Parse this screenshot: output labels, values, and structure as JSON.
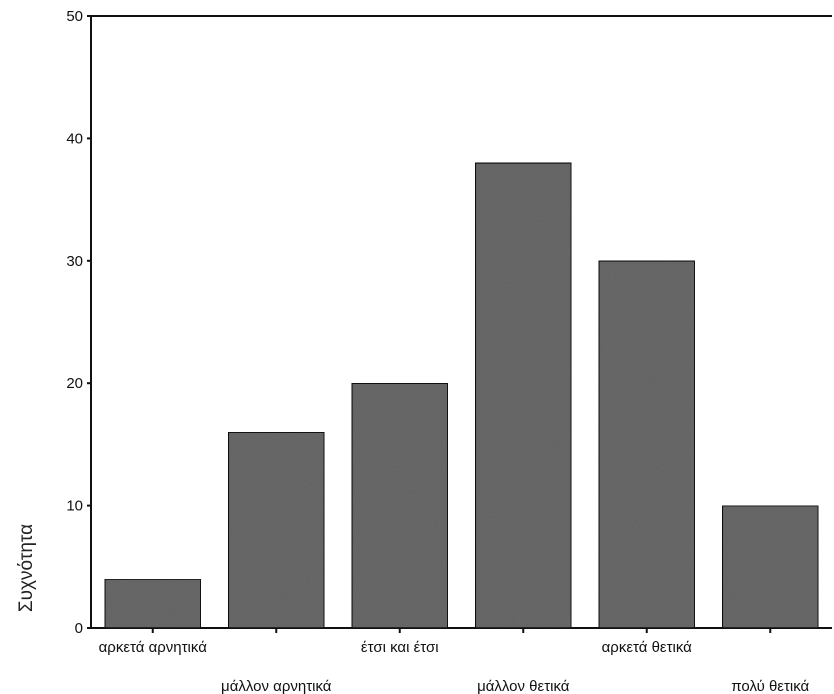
{
  "chart_data": {
    "type": "bar",
    "title": "",
    "xlabel": "",
    "ylabel": "Συχνότητα",
    "ylim": [
      0,
      50
    ],
    "yticks": [
      0,
      10,
      20,
      30,
      40,
      50
    ],
    "categories": [
      "αρκετά αρνητικά",
      "μάλλον αρνητικά",
      "έτσι και έτσι",
      "μάλλον θετικά",
      "αρκετά θετικά",
      "πολύ θετικά"
    ],
    "values": [
      4,
      16,
      20,
      38,
      30,
      10
    ],
    "grid": false,
    "bar_color": "#6e6e6e",
    "bar_edge_color": "#111111"
  }
}
